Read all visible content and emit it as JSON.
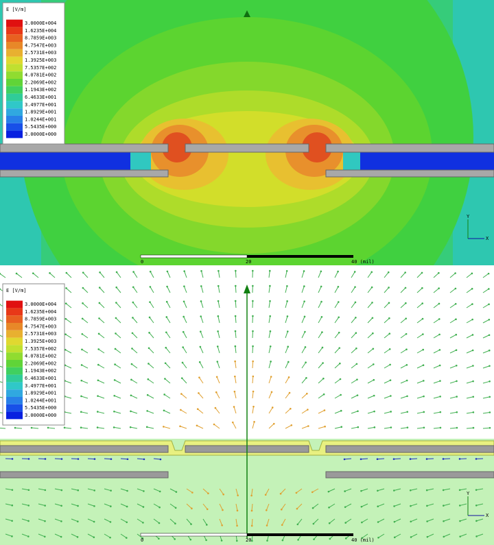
{
  "panels": [
    {
      "legend": {
        "title": "E [V/m]",
        "labels": [
          "3.0000E+004",
          "1.6235E+004",
          "8.7859E+003",
          "4.7547E+003",
          "2.5731E+003",
          "1.3925E+003",
          "7.5357E+002",
          "4.0781E+002",
          "2.2069E+002",
          "1.1943E+002",
          "6.4633E+001",
          "3.4977E+001",
          "1.8929E+001",
          "1.0244E+001",
          "5.5435E+000",
          "3.0000E+000"
        ]
      },
      "scale": {
        "labels": [
          "0",
          "20",
          "40 (mil)"
        ]
      },
      "axes": {
        "y": "Y",
        "x": "X"
      }
    },
    {
      "legend": {
        "title": "E [V/m]",
        "labels": [
          "3.0000E+004",
          "1.6235E+004",
          "8.7859E+003",
          "4.7547E+003",
          "2.5731E+003",
          "1.3925E+003",
          "7.5357E+002",
          "4.0781E+002",
          "2.2069E+002",
          "1.1943E+002",
          "6.4633E+001",
          "3.4977E+001",
          "1.8929E+001",
          "1.0244E+001",
          "5.5435E+000",
          "3.0000E+000"
        ]
      },
      "scale": {
        "labels": [
          "0",
          "20",
          "40 (mil)"
        ]
      },
      "axes": {
        "y": "Y",
        "x": "X"
      }
    }
  ]
}
